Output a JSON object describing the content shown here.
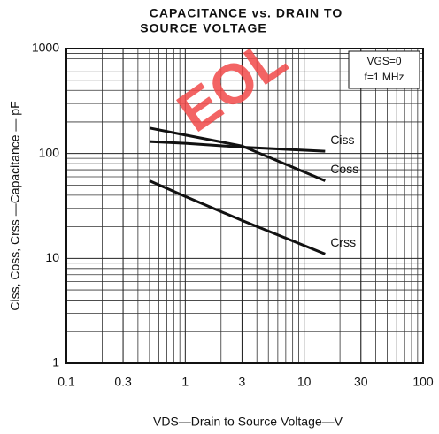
{
  "chart_data": {
    "type": "line",
    "title": "CAPACITANCE vs. DRAIN TO",
    "subtitle": "SOURCE VOLTAGE",
    "x_label": "VDS—Drain to Source Voltage—V",
    "y_label": "Ciss, Coss, Crss —Capacitance — pF",
    "annotations": [
      "VGS=0",
      "f=1 MHz"
    ],
    "watermark": "EOL",
    "x": [
      0.5,
      1,
      3,
      15
    ],
    "series": [
      {
        "name": "Ciss",
        "color": "#111111",
        "values": [
          130,
          125,
          115,
          105
        ]
      },
      {
        "name": "Coss",
        "color": "#111111",
        "values": [
          175,
          150,
          118,
          55
        ]
      },
      {
        "name": "Crss",
        "color": "#111111",
        "values": [
          55,
          39,
          23,
          11
        ]
      }
    ],
    "xlim": [
      0.1,
      100
    ],
    "ylim": [
      1,
      1000
    ],
    "xticks": [
      0.1,
      0.3,
      1,
      3,
      10,
      30,
      100
    ],
    "yticks": [
      1,
      10,
      100,
      1000
    ],
    "log_x": true,
    "log_y": true,
    "grid": true
  }
}
